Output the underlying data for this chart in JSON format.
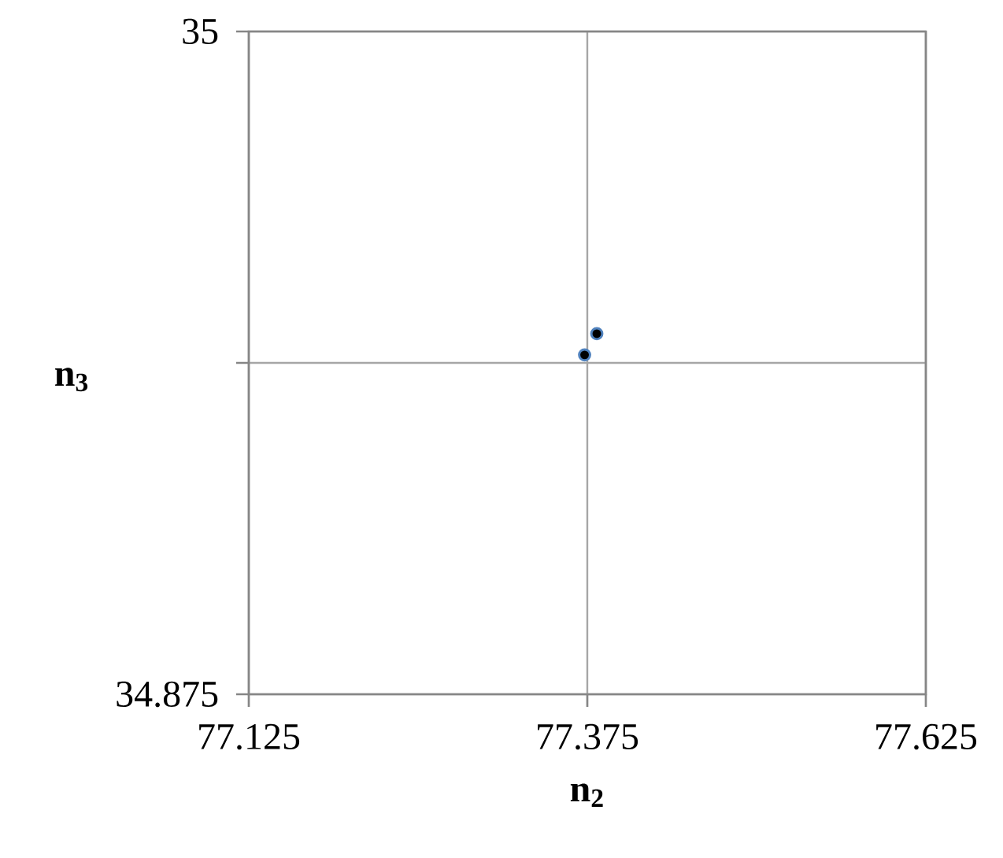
{
  "chart_data": {
    "type": "scatter",
    "xlabel": "n$_{2}$",
    "ylabel": "n$_{3}$",
    "series": [
      {
        "color": "#000000",
        "x": [
          77.373,
          77.382
        ],
        "values": [
          34.939,
          34.943
        ]
      }
    ],
    "xlim": [
      77.125,
      77.625
    ],
    "ylim": [
      34.875,
      35
    ],
    "xticks": [
      77.125,
      77.375,
      77.625
    ],
    "yticks": [
      34.875,
      {
        "value": 34.9375,
        "label": null
      },
      35
    ],
    "grid": true,
    "marker": "circle"
  }
}
